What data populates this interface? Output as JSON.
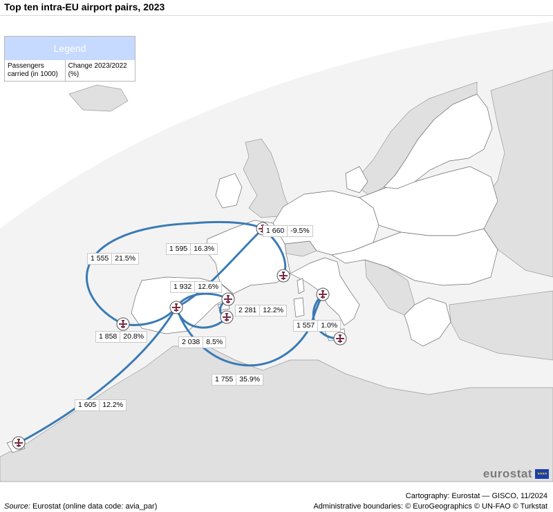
{
  "title": "Top ten intra-EU airport pairs, 2023",
  "legend": {
    "header": "Legend",
    "col1": "Passengers carried (in 1000)",
    "col2": "Change 2023/2022 (%)"
  },
  "routes": [
    {
      "passengers": "1 660",
      "change": "-9.5%"
    },
    {
      "passengers": "1 595",
      "change": "16.3%"
    },
    {
      "passengers": "1 555",
      "change": "21.5%"
    },
    {
      "passengers": "1 932",
      "change": "12.6%"
    },
    {
      "passengers": "2 281",
      "change": "12.2%"
    },
    {
      "passengers": "1 557",
      "change": "1.0%"
    },
    {
      "passengers": "1 858",
      "change": "20.8%"
    },
    {
      "passengers": "2 038",
      "change": "8.5%"
    },
    {
      "passengers": "1 755",
      "change": "35.9%"
    },
    {
      "passengers": "1 605",
      "change": "12.2%"
    }
  ],
  "colors": {
    "eu_land": "#ffffff",
    "non_eu_land": "#e0e0e0",
    "sea": "#f3f3f3",
    "route": "#3a7ab5",
    "airport_icon": "#7a2a40"
  },
  "icons": {
    "airport": "plane-in-circle-icon"
  },
  "logo": {
    "text": "eurostat",
    "flag": "★★★★"
  },
  "footer": {
    "source_label": "Source:",
    "source_text": " Eurostat (online data code: avia_par)",
    "cartography": "Cartography: Eurostat — GISCO, 11/2024",
    "admin": "Administrative boundaries: © EuroGeographics © UN-FAO © Turkstat"
  }
}
